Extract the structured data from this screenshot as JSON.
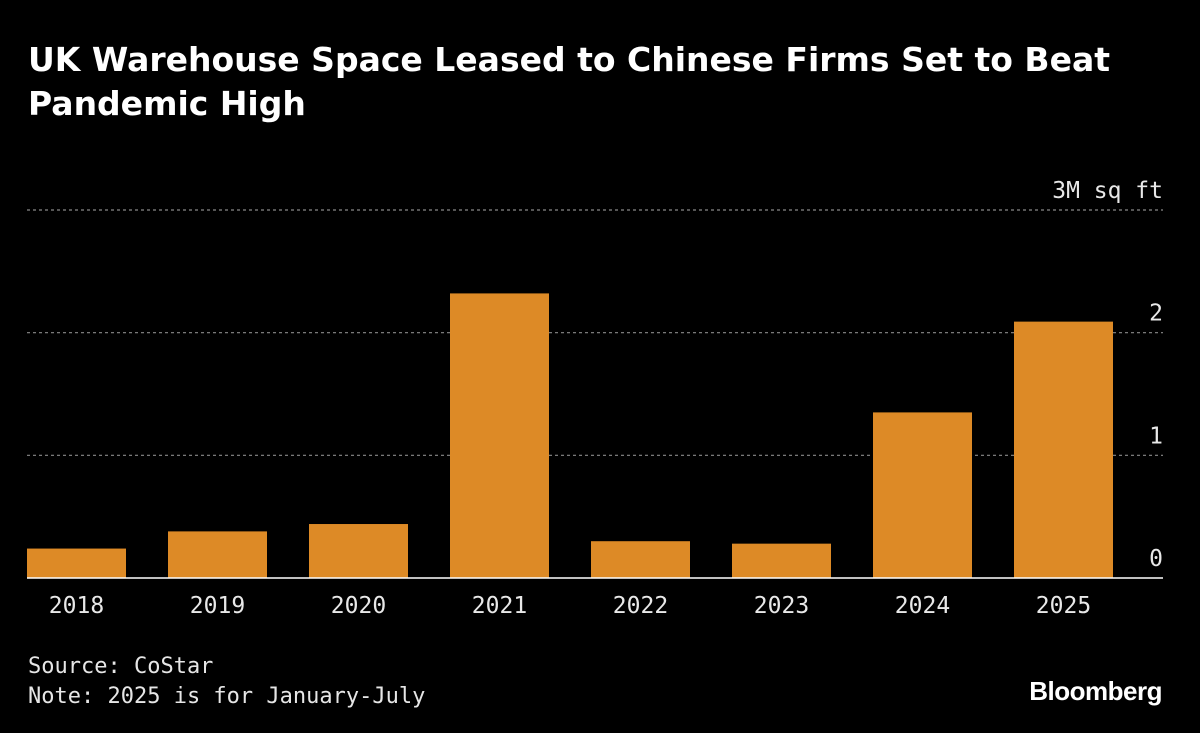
{
  "chart_data": {
    "type": "bar",
    "title": "UK Warehouse Space Leased to Chinese Firms Set to Beat Pandemic High",
    "unit_label": "3M sq ft",
    "categories": [
      "2018",
      "2019",
      "2020",
      "2021",
      "2022",
      "2023",
      "2024",
      "2025"
    ],
    "values": [
      0.24,
      0.38,
      0.44,
      2.32,
      0.3,
      0.28,
      1.35,
      2.09
    ],
    "ylim": [
      0,
      3
    ],
    "yticks": [
      0,
      1,
      2,
      3
    ],
    "ytick_labels": [
      "0",
      "1",
      "2",
      "3M sq ft"
    ],
    "y_axis_side": "right",
    "grid": true,
    "bar_color": "#dd8a26",
    "background_color": "#000000"
  },
  "footer": {
    "source": "Source: CoStar",
    "note": "Note: 2025 is for January-July"
  },
  "brand": "Bloomberg"
}
